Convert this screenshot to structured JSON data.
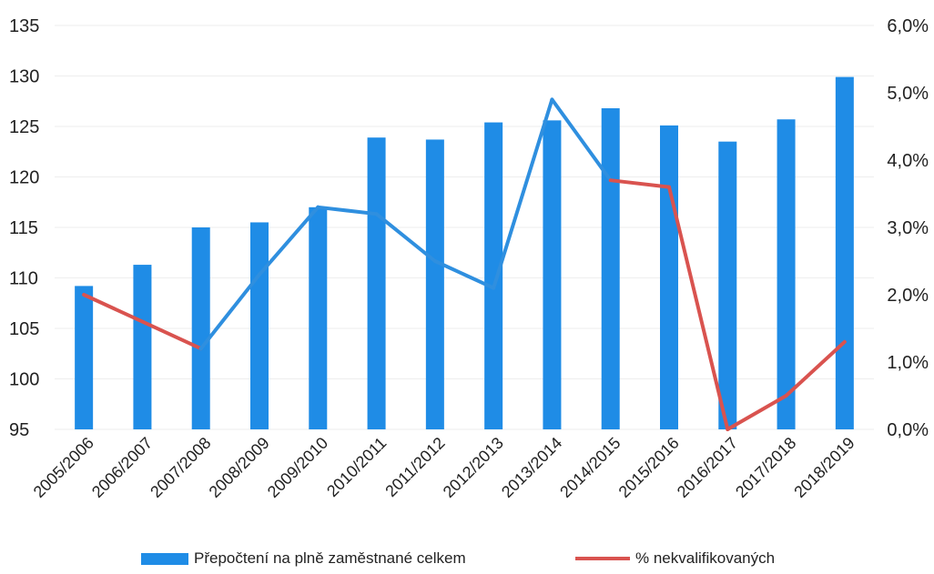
{
  "chart_data": {
    "type": "bar",
    "categories": [
      "2005/2006",
      "2006/2007",
      "2007/2008",
      "2008/2009",
      "2009/2010",
      "2010/2011",
      "2011/2012",
      "2012/2013",
      "2013/2014",
      "2014/2015",
      "2015/2016",
      "2016/2017",
      "2017/2018",
      "2018/2019"
    ],
    "bar_series": {
      "name": "Přepočtení na plně zaměstnané celkem",
      "color": "#1f8ce6",
      "values": [
        109.2,
        111.3,
        115.0,
        115.5,
        117.0,
        123.9,
        123.7,
        125.4,
        125.6,
        126.8,
        125.1,
        123.5,
        125.7,
        129.9
      ]
    },
    "line_series": {
      "name": "% nekvalifikovaných",
      "color": "#d9534f",
      "overlay_color": "#2f8fdf",
      "values": [
        2.0,
        1.6,
        1.2,
        2.3,
        3.3,
        3.2,
        2.5,
        2.1,
        4.9,
        3.7,
        3.6,
        0.0,
        0.5,
        1.3
      ],
      "segment_colors": [
        "red",
        "red",
        "blue",
        "blue",
        "blue",
        "blue",
        "blue",
        "blue",
        "blue",
        "red",
        "red",
        "red",
        "red"
      ]
    },
    "y_left": {
      "min": 95,
      "max": 135,
      "ticks": [
        "95",
        "100",
        "105",
        "110",
        "115",
        "120",
        "125",
        "130",
        "135"
      ]
    },
    "y_right": {
      "min": 0,
      "max": 6,
      "ticks": [
        "0,0%",
        "1,0%",
        "2,0%",
        "3,0%",
        "4,0%",
        "5,0%",
        "6,0%"
      ]
    },
    "legend": {
      "bar_label": "Přepočtení na plně zaměstnané celkem",
      "line_label": "% nekvalifikovaných",
      "position": "bottom"
    },
    "grid": true
  }
}
